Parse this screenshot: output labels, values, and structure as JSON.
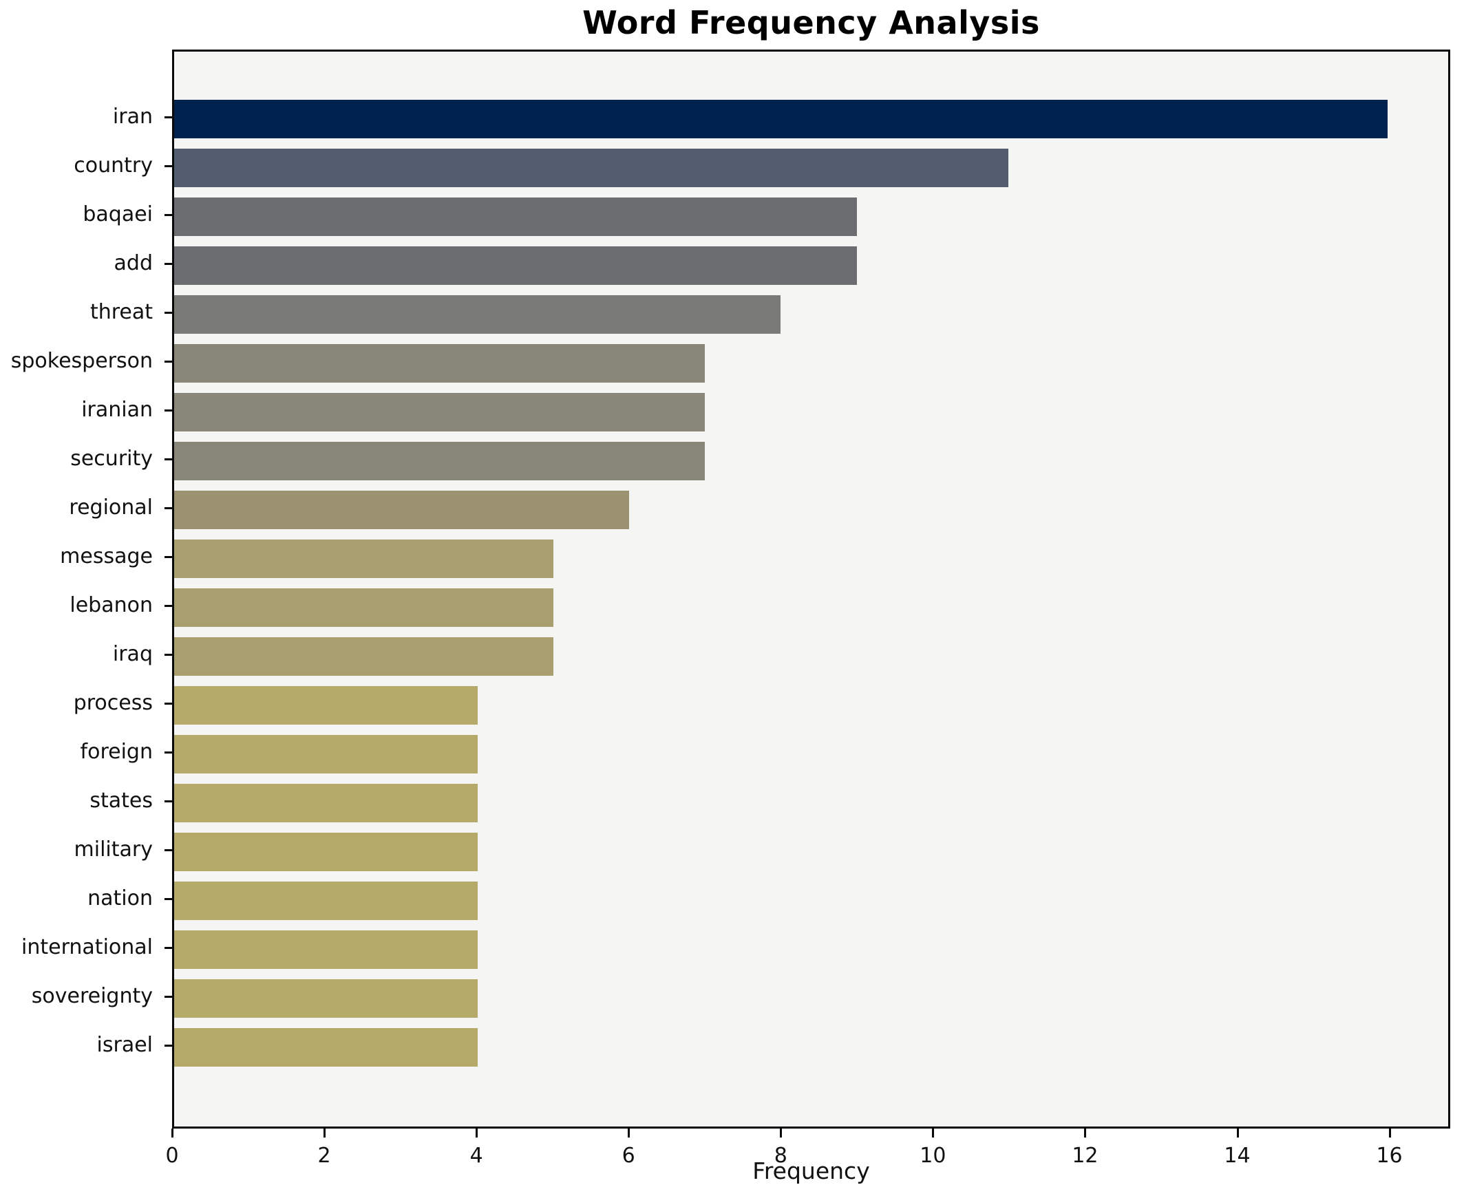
{
  "title": "Word Frequency Analysis",
  "chart_data": {
    "type": "bar",
    "orientation": "horizontal",
    "title": "Word Frequency Analysis",
    "xlabel": "Frequency",
    "ylabel": "",
    "categories": [
      "iran",
      "country",
      "baqaei",
      "add",
      "threat",
      "spokesperson",
      "iranian",
      "security",
      "regional",
      "message",
      "lebanon",
      "iraq",
      "process",
      "foreign",
      "states",
      "military",
      "nation",
      "international",
      "sovereignty",
      "israel"
    ],
    "values": [
      16,
      11,
      9,
      9,
      8,
      7,
      7,
      7,
      6,
      5,
      5,
      5,
      4,
      4,
      4,
      4,
      4,
      4,
      4,
      4
    ],
    "bar_colors": [
      "#00224e",
      "#545c6f",
      "#6b6d71",
      "#6b6d71",
      "#7a7a76",
      "#89867a",
      "#89867a",
      "#89867a",
      "#9a9270",
      "#a99f6e",
      "#a99f6e",
      "#a99f6e",
      "#b5aa6a",
      "#b5aa6a",
      "#b5aa6a",
      "#b5aa6a",
      "#b5aa6a",
      "#b5aa6a",
      "#b5aa6a",
      "#b5aa6a"
    ],
    "x_ticks": [
      0,
      2,
      4,
      6,
      8,
      10,
      12,
      14,
      16
    ],
    "xlim": [
      0,
      16.8
    ],
    "grid": false,
    "legend": false,
    "plot_background": "#f5f5f4",
    "figure_background": "#ffffff"
  }
}
